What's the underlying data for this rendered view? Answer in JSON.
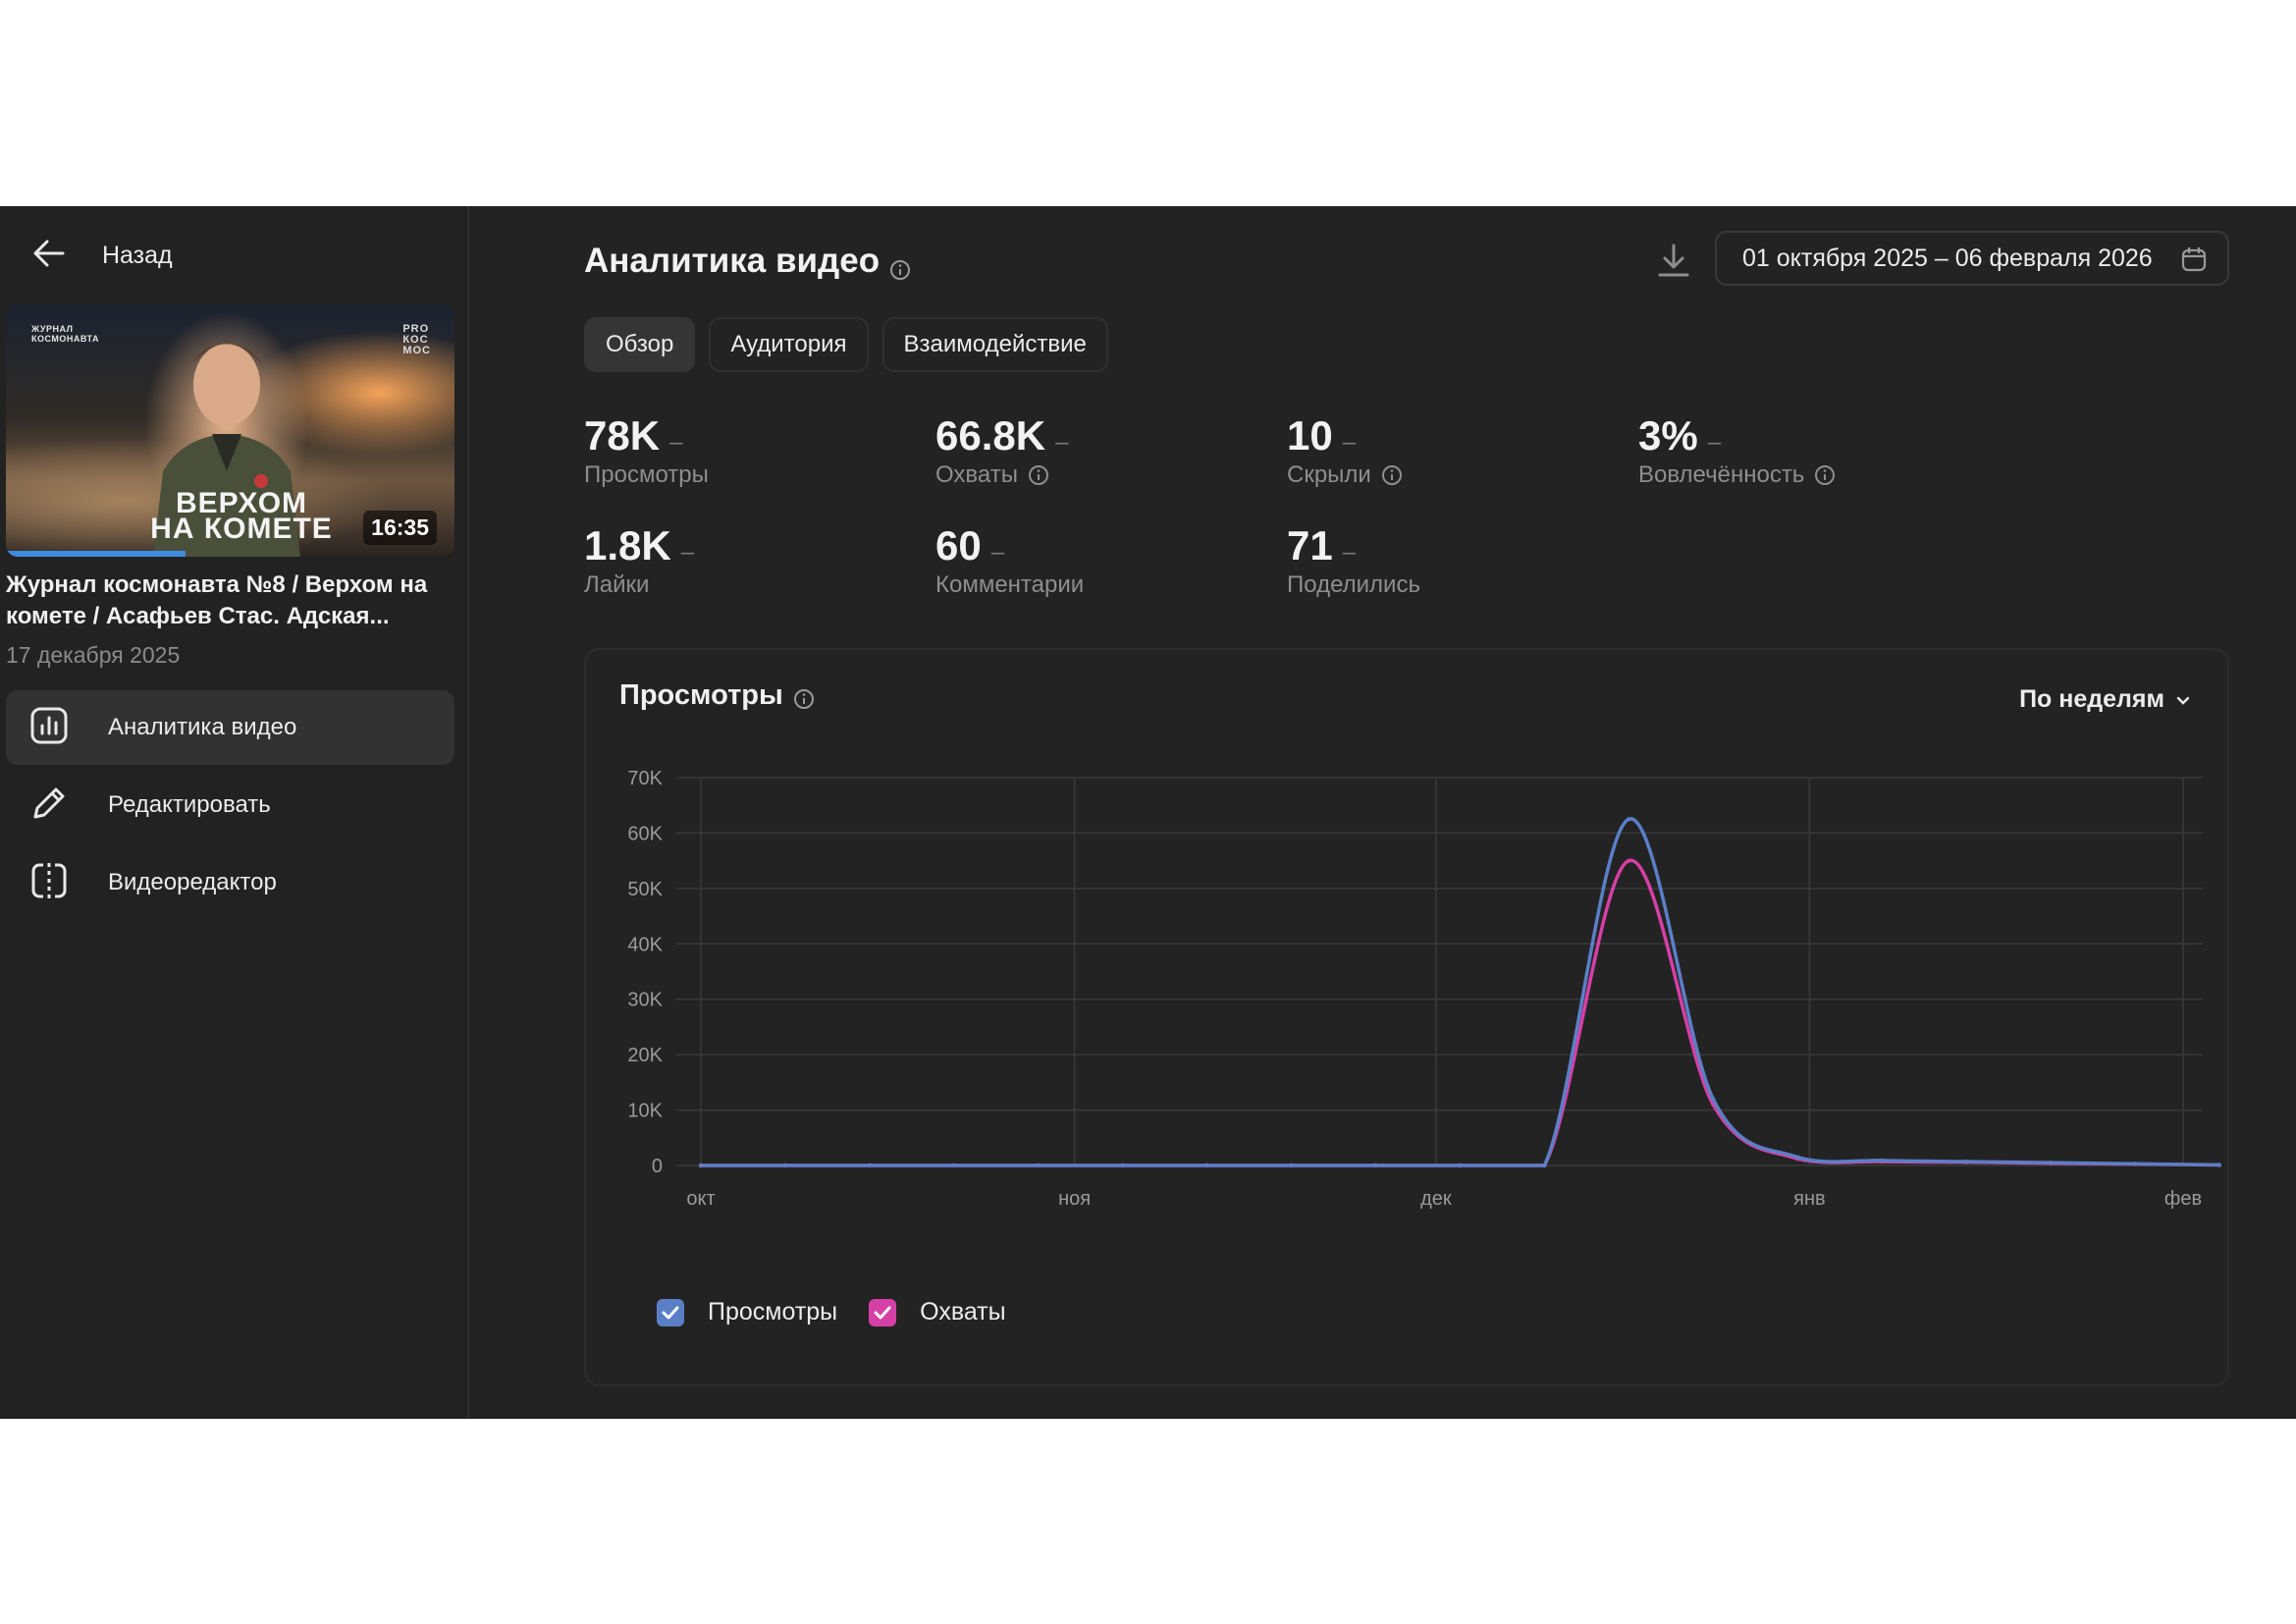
{
  "sidebar": {
    "back_label": "Назад",
    "video": {
      "thumb_top_text": "ЖУРНАЛ\nКОСМОНАВТА",
      "thumb_logo": "PRO\nКОС\nМОС",
      "thumb_title_line1": "ВЕРХОМ",
      "thumb_title_line2": "НА КОМЕТЕ",
      "duration": "16:35",
      "watched_fraction": 0.4,
      "title": "Журнал космонавта №8 / Верхом на комете / Асафьев Стас. Адская...",
      "date": "17 декабря 2025"
    },
    "menu": [
      {
        "label": "Аналитика видео",
        "icon": "bar-chart-icon",
        "active": true
      },
      {
        "label": "Редактировать",
        "icon": "pencil-icon",
        "active": false
      },
      {
        "label": "Видеоредактор",
        "icon": "video-editor-icon",
        "active": false
      }
    ]
  },
  "header": {
    "title": "Аналитика видео",
    "date_range": "01 октября 2025 – 06 февраля 2026"
  },
  "tabs": [
    {
      "label": "Обзор",
      "active": true
    },
    {
      "label": "Аудитория",
      "active": false
    },
    {
      "label": "Взаимодействие",
      "active": false
    }
  ],
  "stats": {
    "views": {
      "value": "78K",
      "label": "Просмотры"
    },
    "reach": {
      "value": "66.8K",
      "label": "Охваты"
    },
    "hidden": {
      "value": "10",
      "label": "Скрыли"
    },
    "engagement": {
      "value": "3%",
      "label": "Вовлечённость"
    },
    "likes": {
      "value": "1.8K",
      "label": "Лайки"
    },
    "comments": {
      "value": "60",
      "label": "Комментарии"
    },
    "shares": {
      "value": "71",
      "label": "Поделились"
    },
    "dash": "–"
  },
  "chart_card": {
    "title": "Просмотры",
    "period": "По неделям"
  },
  "colors": {
    "views": "#5b7fc7",
    "reach": "#d63fa6",
    "grid": "#3a3a3a",
    "axis_text": "#9a9a9a"
  },
  "chart_data": {
    "type": "line",
    "x": [
      "2025-10-01",
      "2025-10-08",
      "2025-10-15",
      "2025-10-22",
      "2025-10-29",
      "2025-11-05",
      "2025-11-12",
      "2025-11-19",
      "2025-11-26",
      "2025-12-03",
      "2025-12-10",
      "2025-12-17",
      "2025-12-24",
      "2025-12-31",
      "2026-01-07",
      "2026-01-14",
      "2026-01-21",
      "2026-01-28",
      "2026-02-04"
    ],
    "x_tick_labels": [
      "окт",
      "ноя",
      "дек",
      "янв",
      "фев"
    ],
    "x_tick_dates": [
      "2025-10-01",
      "2025-11-01",
      "2025-12-01",
      "2026-01-01",
      "2026-02-01"
    ],
    "series": [
      {
        "name": "Просмотры",
        "values": [
          0,
          0,
          0,
          0,
          0,
          0,
          0,
          0,
          0,
          0,
          0,
          62500,
          12000,
          1500,
          900,
          700,
          500,
          300,
          100
        ]
      },
      {
        "name": "Охваты",
        "values": [
          0,
          0,
          0,
          0,
          0,
          0,
          0,
          0,
          0,
          0,
          0,
          55000,
          11000,
          1200,
          700,
          600,
          400,
          250,
          80
        ]
      }
    ],
    "y_ticks": [
      "0",
      "10K",
      "20K",
      "30K",
      "40K",
      "50K",
      "60K",
      "70K"
    ],
    "ylim": [
      0,
      70000
    ],
    "grid": true,
    "legend": "bottom-left"
  }
}
